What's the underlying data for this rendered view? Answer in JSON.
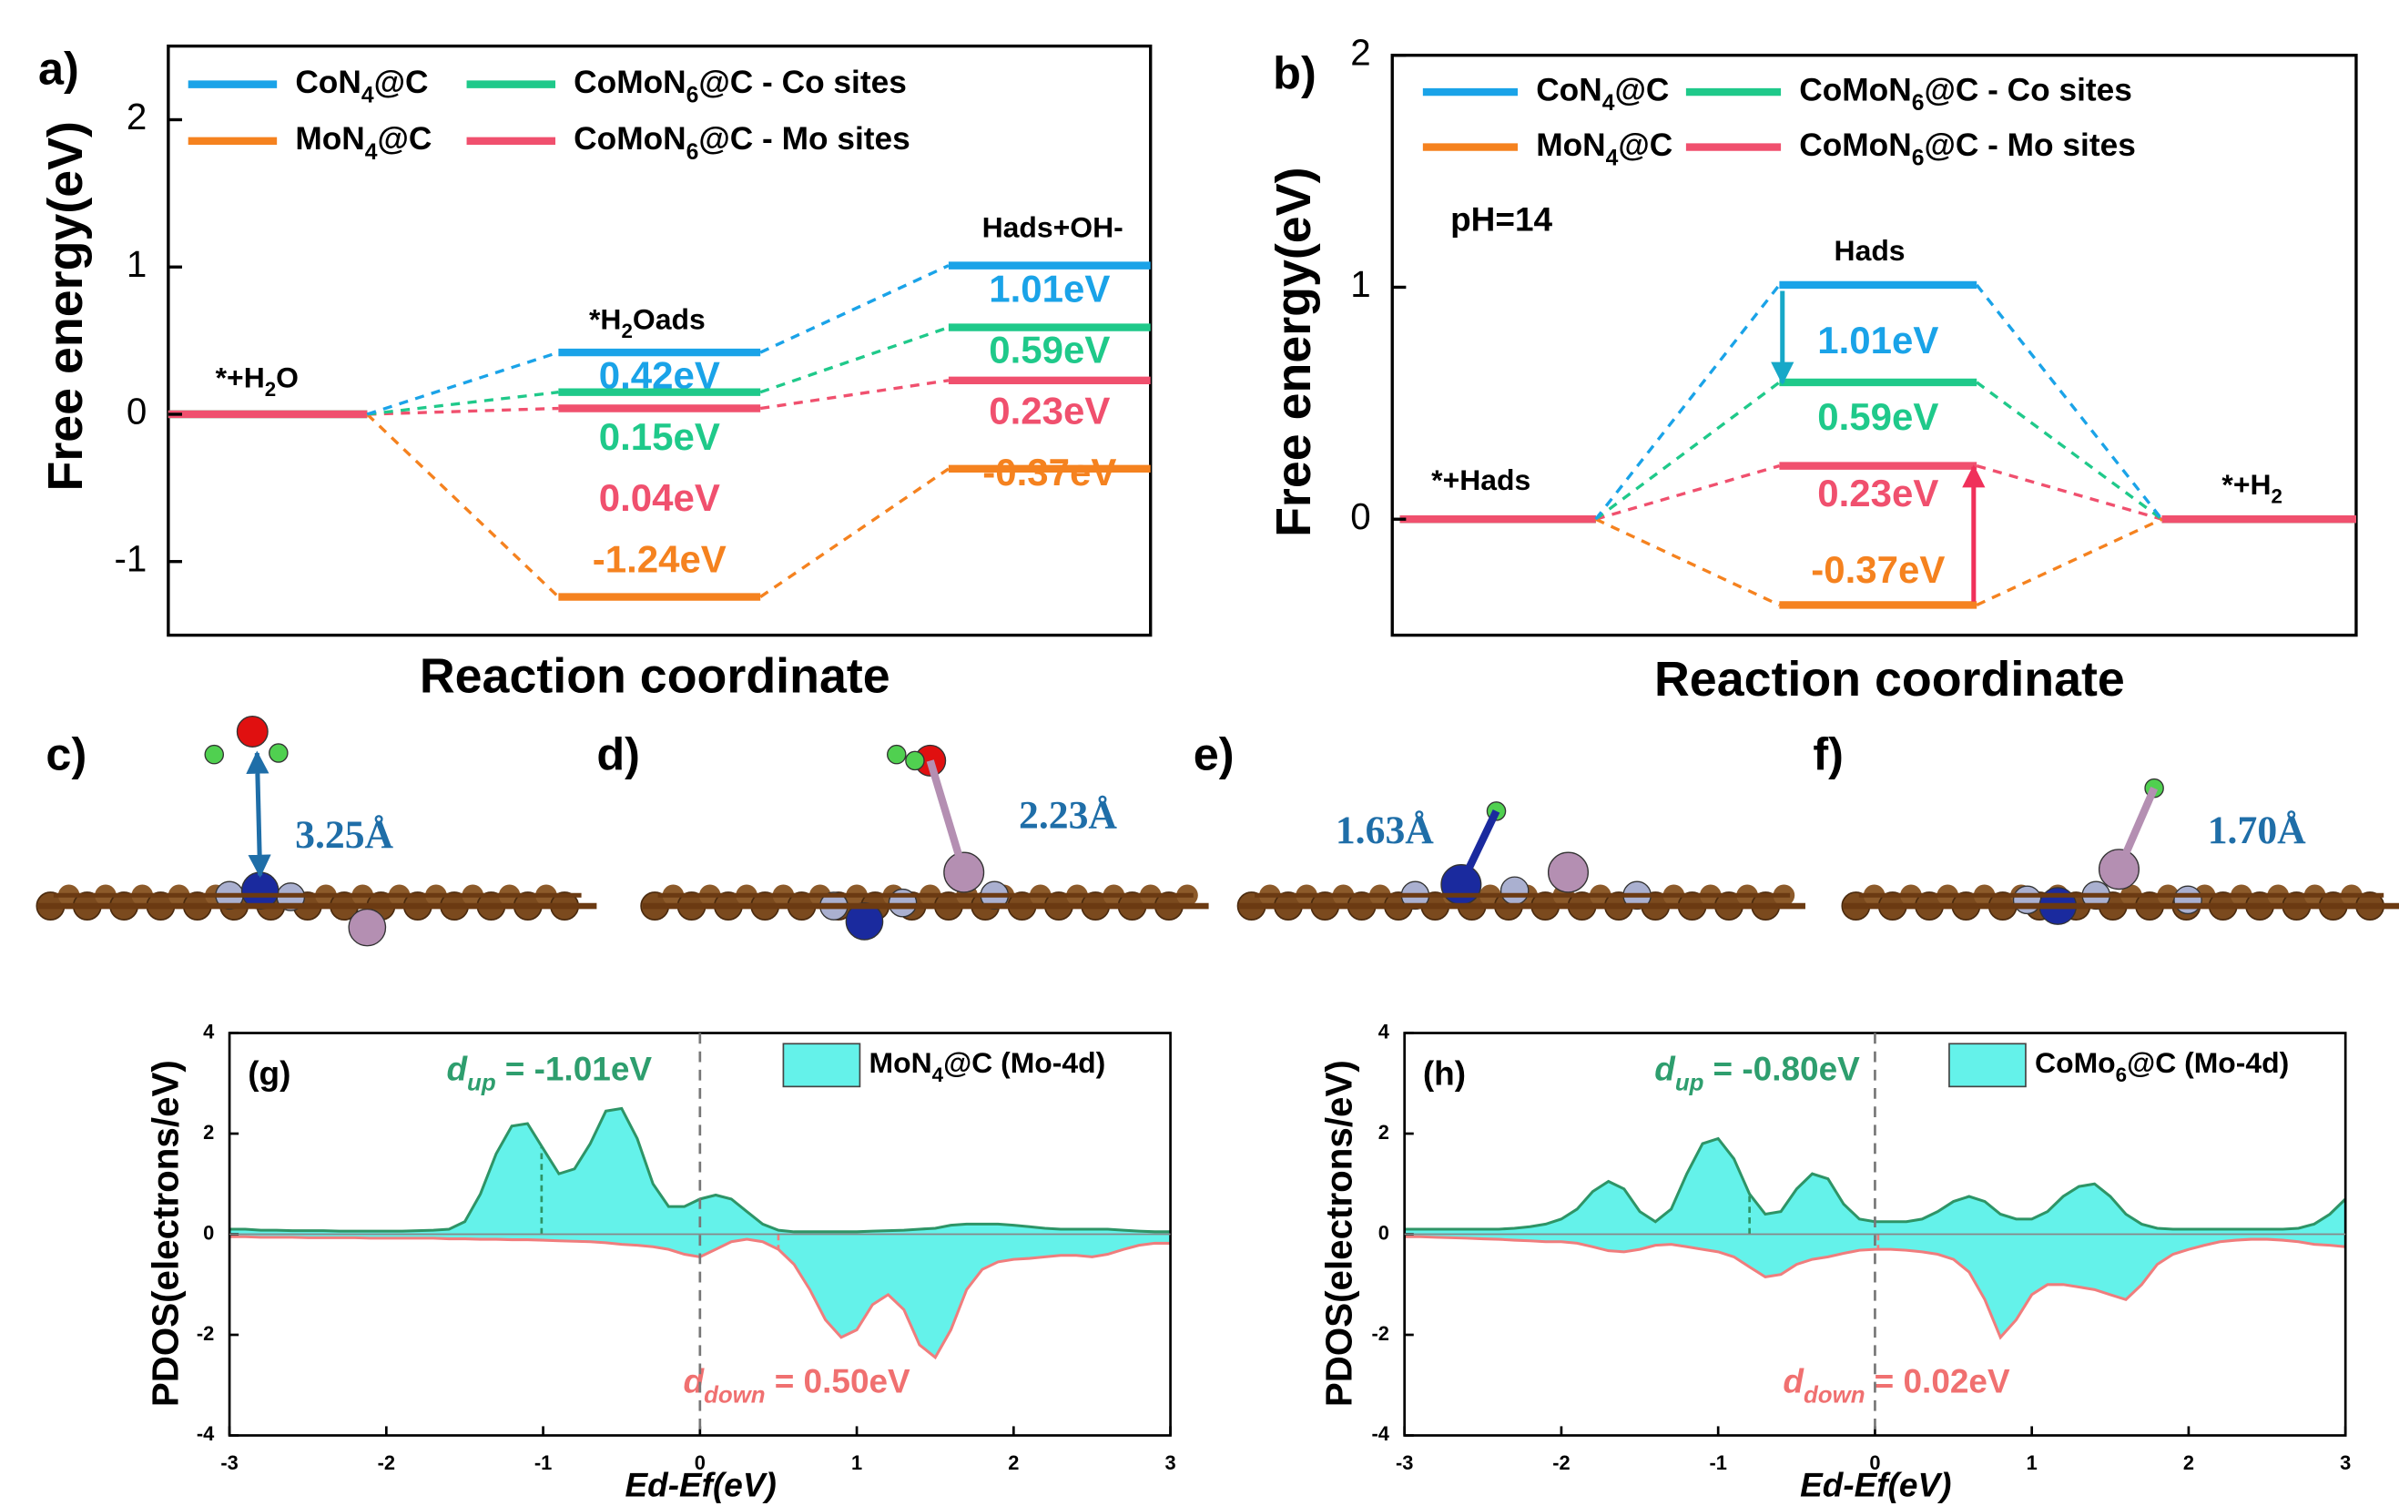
{
  "chart_data": [
    {
      "type": "energy",
      "panel_label": "a)",
      "xlabel": "Reaction coordinate",
      "ylabel": "Free energy(eV)",
      "categories": [
        "*+H2O",
        "*H2Oads",
        "Hads+OH-"
      ],
      "ylim": [
        -1.5,
        2.5
      ],
      "yticks": [
        -1,
        0,
        1,
        2
      ],
      "series": [
        {
          "name": "CoN4@C",
          "color": "#1aa3e8",
          "values": [
            0,
            0.42,
            1.01
          ],
          "value_labels": [
            null,
            "0.42eV",
            "1.01eV"
          ]
        },
        {
          "name": "MoN4@C",
          "color": "#f5821f",
          "values": [
            0,
            -1.24,
            -0.37
          ],
          "value_labels": [
            null,
            "-1.24eV",
            "-0.37eV"
          ]
        },
        {
          "name": "CoMoN6@C - Co sites",
          "color": "#1fc98a",
          "values": [
            0,
            0.15,
            0.59
          ],
          "value_labels": [
            null,
            "0.15eV",
            "0.59eV"
          ]
        },
        {
          "name": "CoMoN6@C - Mo sites",
          "color": "#f0506e",
          "values": [
            0,
            0.04,
            0.23
          ],
          "value_labels": [
            null,
            "0.04eV",
            "0.23eV"
          ]
        }
      ]
    },
    {
      "type": "energy",
      "panel_label": "b)",
      "xlabel": "Reaction coordinate",
      "ylabel": "Free energy(eV)",
      "annotation": "pH=14",
      "categories": [
        "*+Hads",
        "Hads",
        "*+H2"
      ],
      "ylim": [
        -0.5,
        2
      ],
      "yticks": [
        0,
        1,
        2
      ],
      "series": [
        {
          "name": "CoN4@C",
          "color": "#1aa3e8",
          "values": [
            0,
            1.01,
            0
          ],
          "value_labels": [
            null,
            "1.01eV",
            null
          ]
        },
        {
          "name": "MoN4@C",
          "color": "#f5821f",
          "values": [
            0,
            -0.37,
            0
          ],
          "value_labels": [
            null,
            "-0.37eV",
            null
          ]
        },
        {
          "name": "CoMoN6@C - Co sites",
          "color": "#1fc98a",
          "values": [
            0,
            0.59,
            0
          ],
          "value_labels": [
            null,
            "0.59eV",
            null
          ]
        },
        {
          "name": "CoMoN6@C - Mo sites",
          "color": "#f0506e",
          "values": [
            0,
            0.23,
            0
          ],
          "value_labels": [
            null,
            "0.23eV",
            null
          ]
        }
      ]
    },
    {
      "type": "area",
      "panel_label": "(g)",
      "xlabel": "Ed-Ef(eV)",
      "ylabel": "PDOS(electrons/eV)",
      "legend_label": "MoN4@C (Mo-4d)",
      "fill_color": "#64f2ea",
      "xlim": [
        -3,
        3
      ],
      "xticks": [
        -3,
        -2,
        -1,
        0,
        1,
        2,
        3
      ],
      "ylim": [
        -4,
        4
      ],
      "yticks": [
        -4,
        -2,
        0,
        2,
        4
      ],
      "x": [
        -3,
        -2.9,
        -2.8,
        -2.7,
        -2.6,
        -2.5,
        -2.4,
        -2.3,
        -2.2,
        -2.1,
        -2,
        -1.9,
        -1.8,
        -1.7,
        -1.6,
        -1.5,
        -1.4,
        -1.3,
        -1.2,
        -1.1,
        -1,
        -0.9,
        -0.8,
        -0.7,
        -0.6,
        -0.5,
        -0.4,
        -0.3,
        -0.2,
        -0.1,
        0,
        0.1,
        0.2,
        0.3,
        0.4,
        0.5,
        0.6,
        0.7,
        0.8,
        0.9,
        1,
        1.1,
        1.2,
        1.3,
        1.4,
        1.5,
        1.6,
        1.7,
        1.8,
        1.9,
        2,
        2.1,
        2.2,
        2.3,
        2.4,
        2.5,
        2.6,
        2.7,
        2.8,
        2.9,
        3
      ],
      "series": [
        {
          "color": "#2e9466",
          "values": [
            0.1,
            0.1,
            0.08,
            0.08,
            0.07,
            0.07,
            0.07,
            0.06,
            0.06,
            0.06,
            0.06,
            0.06,
            0.07,
            0.08,
            0.1,
            0.25,
            0.8,
            1.6,
            2.15,
            2.2,
            1.7,
            1.2,
            1.3,
            1.8,
            2.45,
            2.5,
            1.9,
            1.0,
            0.55,
            0.55,
            0.7,
            0.78,
            0.7,
            0.45,
            0.2,
            0.08,
            0.05,
            0.05,
            0.05,
            0.05,
            0.05,
            0.06,
            0.07,
            0.08,
            0.1,
            0.12,
            0.18,
            0.2,
            0.2,
            0.2,
            0.18,
            0.15,
            0.12,
            0.1,
            0.1,
            0.1,
            0.1,
            0.08,
            0.06,
            0.05,
            0.05
          ]
        },
        {
          "color": "#f07d7d",
          "values": [
            -0.05,
            -0.05,
            -0.06,
            -0.06,
            -0.06,
            -0.07,
            -0.07,
            -0.07,
            -0.07,
            -0.08,
            -0.08,
            -0.08,
            -0.08,
            -0.08,
            -0.09,
            -0.09,
            -0.1,
            -0.1,
            -0.11,
            -0.11,
            -0.12,
            -0.13,
            -0.14,
            -0.15,
            -0.17,
            -0.2,
            -0.22,
            -0.25,
            -0.3,
            -0.4,
            -0.45,
            -0.3,
            -0.15,
            -0.1,
            -0.15,
            -0.3,
            -0.6,
            -1.1,
            -1.7,
            -2.05,
            -1.9,
            -1.4,
            -1.2,
            -1.5,
            -2.2,
            -2.45,
            -1.9,
            -1.1,
            -0.7,
            -0.55,
            -0.5,
            -0.48,
            -0.45,
            -0.42,
            -0.42,
            -0.45,
            -0.4,
            -0.3,
            -0.22,
            -0.18,
            -0.18
          ]
        }
      ],
      "annotations": [
        {
          "symbol": "d",
          "subscript": "up",
          "text": "= -1.01eV",
          "x": -1.01
        },
        {
          "symbol": "d",
          "subscript": "down",
          "text": "= 0.50eV",
          "x": 0.5
        }
      ]
    },
    {
      "type": "area",
      "panel_label": "(h)",
      "xlabel": "Ed-Ef(eV)",
      "ylabel": "PDOS(electrons/eV)",
      "legend_label": "CoMo6@C (Mo-4d)",
      "fill_color": "#64f2ea",
      "xlim": [
        -3,
        3
      ],
      "xticks": [
        -3,
        -2,
        -1,
        0,
        1,
        2,
        3
      ],
      "ylim": [
        -4,
        4
      ],
      "yticks": [
        -4,
        -2,
        0,
        2,
        4
      ],
      "x": [
        -3,
        -2.9,
        -2.8,
        -2.7,
        -2.6,
        -2.5,
        -2.4,
        -2.3,
        -2.2,
        -2.1,
        -2,
        -1.9,
        -1.8,
        -1.7,
        -1.6,
        -1.5,
        -1.4,
        -1.3,
        -1.2,
        -1.1,
        -1,
        -0.9,
        -0.8,
        -0.7,
        -0.6,
        -0.5,
        -0.4,
        -0.3,
        -0.2,
        -0.1,
        0,
        0.1,
        0.2,
        0.3,
        0.4,
        0.5,
        0.6,
        0.7,
        0.8,
        0.9,
        1,
        1.1,
        1.2,
        1.3,
        1.4,
        1.5,
        1.6,
        1.7,
        1.8,
        1.9,
        2,
        2.1,
        2.2,
        2.3,
        2.4,
        2.5,
        2.6,
        2.7,
        2.8,
        2.9,
        3
      ],
      "series": [
        {
          "color": "#2e9466",
          "values": [
            0.1,
            0.1,
            0.1,
            0.1,
            0.1,
            0.1,
            0.1,
            0.12,
            0.15,
            0.2,
            0.3,
            0.5,
            0.85,
            1.05,
            0.9,
            0.45,
            0.25,
            0.5,
            1.2,
            1.8,
            1.9,
            1.5,
            0.8,
            0.4,
            0.45,
            0.9,
            1.2,
            1.1,
            0.6,
            0.3,
            0.25,
            0.25,
            0.25,
            0.3,
            0.45,
            0.65,
            0.75,
            0.65,
            0.4,
            0.3,
            0.3,
            0.45,
            0.75,
            0.95,
            1.0,
            0.75,
            0.4,
            0.2,
            0.12,
            0.1,
            0.1,
            0.1,
            0.1,
            0.1,
            0.1,
            0.1,
            0.1,
            0.12,
            0.2,
            0.4,
            0.7
          ]
        },
        {
          "color": "#f07d7d",
          "values": [
            -0.05,
            -0.05,
            -0.06,
            -0.07,
            -0.08,
            -0.09,
            -0.1,
            -0.12,
            -0.13,
            -0.15,
            -0.15,
            -0.18,
            -0.25,
            -0.33,
            -0.35,
            -0.3,
            -0.22,
            -0.2,
            -0.25,
            -0.3,
            -0.35,
            -0.45,
            -0.65,
            -0.85,
            -0.8,
            -0.6,
            -0.5,
            -0.45,
            -0.38,
            -0.32,
            -0.3,
            -0.3,
            -0.32,
            -0.35,
            -0.4,
            -0.5,
            -0.75,
            -1.3,
            -2.05,
            -1.7,
            -1.2,
            -1.0,
            -1.0,
            -1.05,
            -1.1,
            -1.2,
            -1.3,
            -1.0,
            -0.6,
            -0.4,
            -0.3,
            -0.22,
            -0.15,
            -0.12,
            -0.1,
            -0.1,
            -0.12,
            -0.15,
            -0.2,
            -0.22,
            -0.25
          ]
        }
      ],
      "annotations": [
        {
          "symbol": "d",
          "subscript": "up",
          "text": "= -0.80eV",
          "x": -0.8
        },
        {
          "symbol": "d",
          "subscript": "down",
          "text": "= 0.02eV",
          "x": 0.02
        }
      ]
    }
  ],
  "structures": [
    {
      "label": "c)",
      "distance": "3.25Å"
    },
    {
      "label": "d)",
      "distance": "2.23Å"
    },
    {
      "label": "e)",
      "distance": "1.63Å"
    },
    {
      "label": "f)",
      "distance": "1.70Å"
    }
  ]
}
